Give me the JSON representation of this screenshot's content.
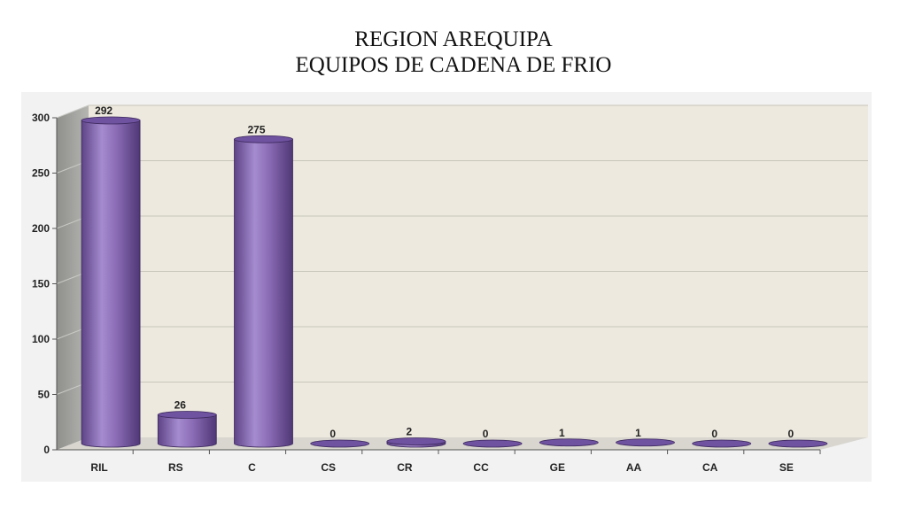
{
  "chart_data": {
    "type": "bar",
    "title_lines": [
      "REGION AREQUIPA",
      "EQUIPOS DE CADENA DE FRIO"
    ],
    "categories": [
      "RIL",
      "RS",
      "C",
      "CS",
      "CR",
      "CC",
      "GE",
      "AA",
      "CA",
      "SE"
    ],
    "values": [
      292,
      26,
      275,
      0,
      2,
      0,
      1,
      1,
      0,
      0
    ],
    "ylim": [
      0,
      300
    ],
    "yticks": [
      0,
      50,
      100,
      150,
      200,
      250,
      300
    ],
    "grid": true,
    "legend": "none",
    "colors": {
      "bar": "#8a6bb5",
      "bar_light": "#a58bcf",
      "bar_dark": "#5e4387",
      "bar_top": "#6f52a0",
      "wall": "#ede9de",
      "side_wall": "#a9a9a6",
      "floor": "#d8d6cf",
      "gridline": "#c8c5bb",
      "outer": "#f2f2f2"
    }
  }
}
